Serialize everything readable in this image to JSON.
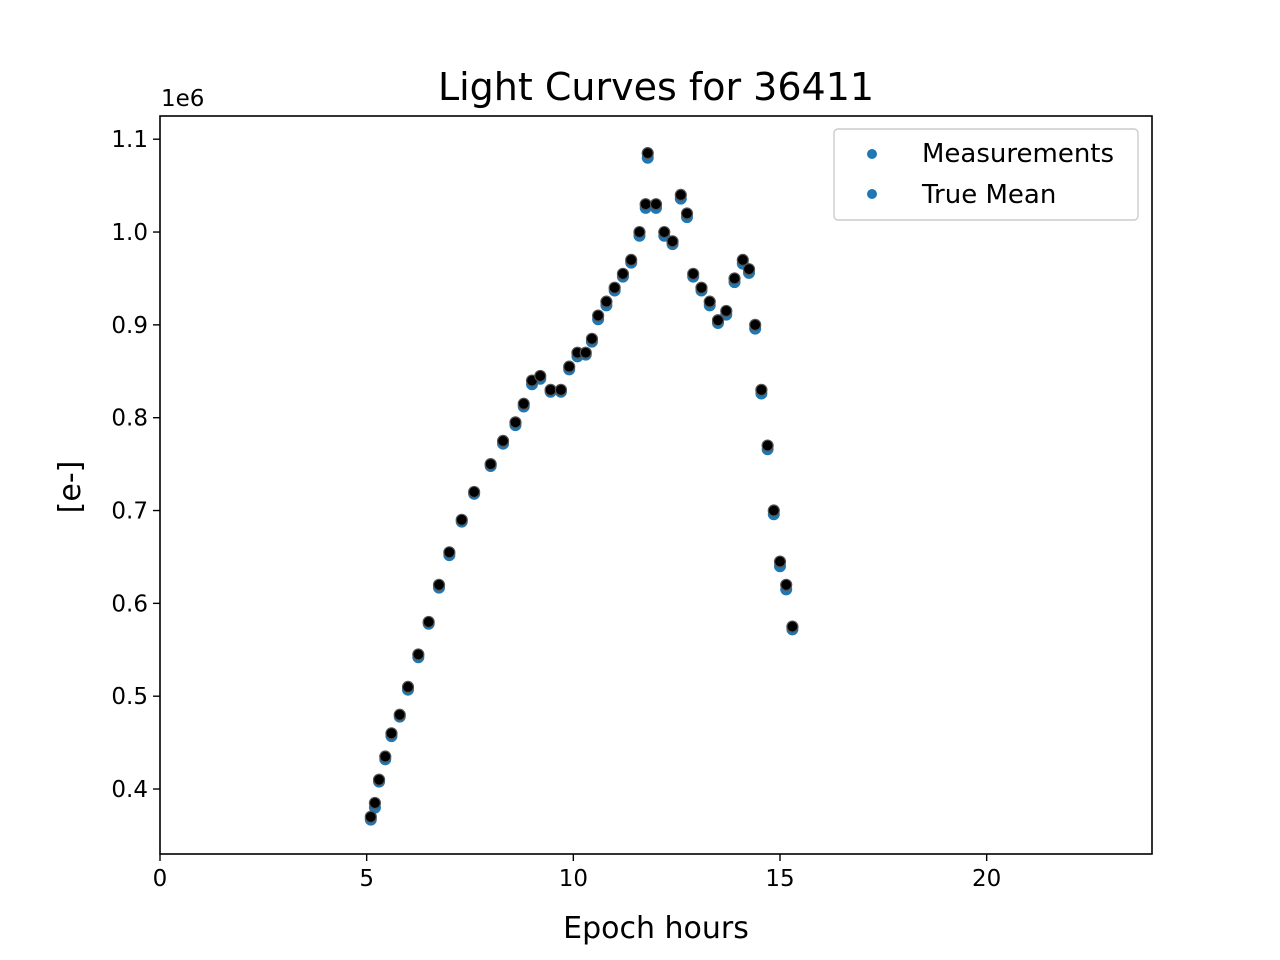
{
  "chart_data": {
    "type": "scatter",
    "title": "Light Curves for 36411",
    "xlabel": "Epoch hours",
    "ylabel": "[e-]",
    "y_offset_label": "1e6",
    "xlim": [
      0,
      24
    ],
    "ylim": [
      0.33,
      1.125
    ],
    "x_ticks": [
      0,
      5,
      10,
      15,
      20
    ],
    "x_tick_labels": [
      "0",
      "5",
      "10",
      "15",
      "20"
    ],
    "y_ticks": [
      0.4,
      0.5,
      0.6,
      0.7,
      0.8,
      0.9,
      1.0,
      1.1
    ],
    "y_tick_labels": [
      "0.4",
      "0.5",
      "0.6",
      "0.7",
      "0.8",
      "0.9",
      "1.0",
      "1.1"
    ],
    "grid": false,
    "legend_position": "top-right",
    "colors": {
      "true_mean": "#1f77b4",
      "measurements": "#000000"
    },
    "series": [
      {
        "name": "Measurements",
        "x": [
          5.1,
          5.2,
          5.3,
          5.45,
          5.6,
          5.8,
          6.0,
          6.25,
          6.5,
          6.75,
          7.0,
          7.3,
          7.6,
          8.0,
          8.3,
          8.6,
          8.8,
          9.0,
          9.2,
          9.45,
          9.7,
          9.9,
          10.1,
          10.3,
          10.45,
          10.6,
          10.8,
          11.0,
          11.2,
          11.4,
          11.6,
          11.75,
          11.8,
          12.0,
          12.2,
          12.4,
          12.6,
          12.75,
          12.9,
          13.1,
          13.3,
          13.5,
          13.7,
          13.9,
          14.1,
          14.25,
          14.4,
          14.55,
          14.7,
          14.85,
          15.0,
          15.15,
          15.3
        ],
        "y": [
          0.37,
          0.385,
          0.41,
          0.435,
          0.46,
          0.48,
          0.51,
          0.545,
          0.58,
          0.62,
          0.655,
          0.69,
          0.72,
          0.75,
          0.775,
          0.795,
          0.815,
          0.84,
          0.845,
          0.83,
          0.83,
          0.855,
          0.87,
          0.87,
          0.885,
          0.91,
          0.925,
          0.94,
          0.955,
          0.97,
          1.0,
          1.03,
          1.085,
          1.03,
          1.0,
          0.99,
          1.04,
          1.02,
          0.955,
          0.94,
          0.925,
          0.905,
          0.915,
          0.95,
          0.97,
          0.96,
          0.9,
          0.83,
          0.77,
          0.7,
          0.645,
          0.62,
          0.575
        ]
      },
      {
        "name": "True Mean",
        "x": [
          5.1,
          5.2,
          5.3,
          5.45,
          5.6,
          5.8,
          6.0,
          6.25,
          6.5,
          6.75,
          7.0,
          7.3,
          7.6,
          8.0,
          8.3,
          8.6,
          8.8,
          9.0,
          9.2,
          9.45,
          9.7,
          9.9,
          10.1,
          10.3,
          10.45,
          10.6,
          10.8,
          11.0,
          11.2,
          11.4,
          11.6,
          11.75,
          11.8,
          12.0,
          12.2,
          12.4,
          12.6,
          12.75,
          12.9,
          13.1,
          13.3,
          13.5,
          13.7,
          13.9,
          14.1,
          14.25,
          14.4,
          14.55,
          14.7,
          14.85,
          15.0,
          15.15,
          15.3
        ],
        "y": [
          0.367,
          0.38,
          0.408,
          0.432,
          0.457,
          0.478,
          0.507,
          0.542,
          0.578,
          0.617,
          0.652,
          0.688,
          0.718,
          0.748,
          0.772,
          0.792,
          0.812,
          0.836,
          0.842,
          0.828,
          0.828,
          0.852,
          0.866,
          0.868,
          0.882,
          0.906,
          0.921,
          0.937,
          0.952,
          0.967,
          0.996,
          1.026,
          1.08,
          1.026,
          0.996,
          0.987,
          1.036,
          1.016,
          0.952,
          0.937,
          0.921,
          0.902,
          0.911,
          0.946,
          0.966,
          0.956,
          0.896,
          0.826,
          0.766,
          0.696,
          0.64,
          0.615,
          0.572
        ]
      }
    ]
  }
}
